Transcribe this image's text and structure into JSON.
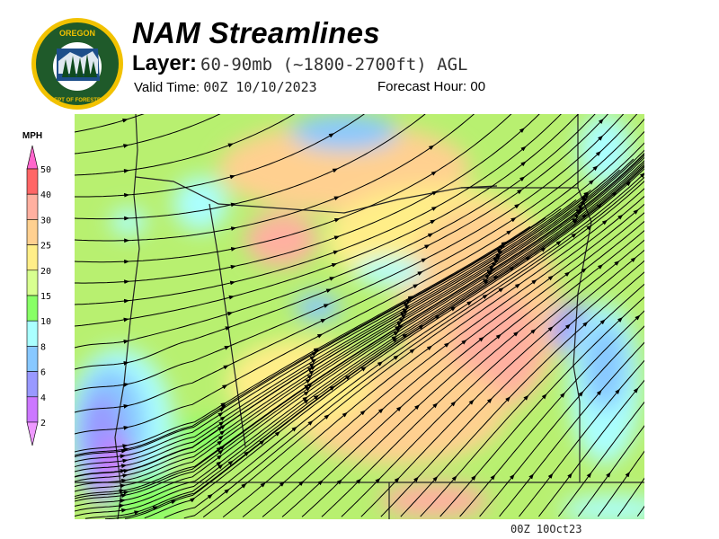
{
  "header": {
    "logo_text_top": "OREGON",
    "logo_text_bottom": "DEPARTMENT OF FORESTRY",
    "title": "NAM Streamlines",
    "layer_label": "Layer:",
    "layer_value": "60-90mb (~1800-2700ft) AGL",
    "valid_label": "Valid Time:",
    "valid_value": "00Z 10/10/2023",
    "forecast_label": "Forecast Hour:",
    "forecast_value": "00"
  },
  "legend": {
    "unit": "MPH",
    "bins": [
      {
        "label": "50",
        "color": "#ff66cc"
      },
      {
        "label": "40",
        "color": "#ff6666"
      },
      {
        "label": "30",
        "color": "#ffb0a0"
      },
      {
        "label": "25",
        "color": "#ffd090"
      },
      {
        "label": "20",
        "color": "#ffee88"
      },
      {
        "label": "15",
        "color": "#d8ff90"
      },
      {
        "label": "10",
        "color": "#88ff66"
      },
      {
        "label": "8",
        "color": "#aaffff"
      },
      {
        "label": "6",
        "color": "#88c8ff"
      },
      {
        "label": "4",
        "color": "#9999ff"
      },
      {
        "label": "2",
        "color": "#cc77ff"
      }
    ],
    "below_color": "#ee99ff"
  },
  "footer": {
    "stamp": "00Z 10Oct23"
  }
}
